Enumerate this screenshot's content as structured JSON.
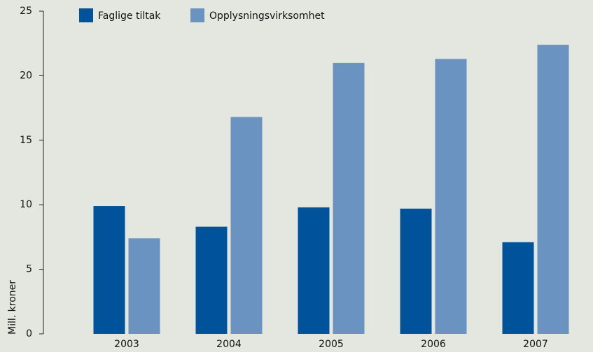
{
  "chart_data": {
    "type": "bar",
    "y_label": "Mill. kroner",
    "categories": [
      "2003",
      "2004",
      "2005",
      "2006",
      "2007"
    ],
    "series": [
      {
        "name": "Faglige tiltak",
        "color": "#00539b",
        "values": [
          9.9,
          8.3,
          9.8,
          9.7,
          7.1
        ]
      },
      {
        "name": "Opplysningsvirksomhet",
        "color": "#6a93c2",
        "values": [
          7.4,
          16.8,
          21.0,
          21.3,
          22.4
        ]
      }
    ],
    "ylim": [
      0,
      25
    ],
    "yticks": [
      0,
      5,
      10,
      15,
      20,
      25
    ],
    "legend": "top"
  }
}
